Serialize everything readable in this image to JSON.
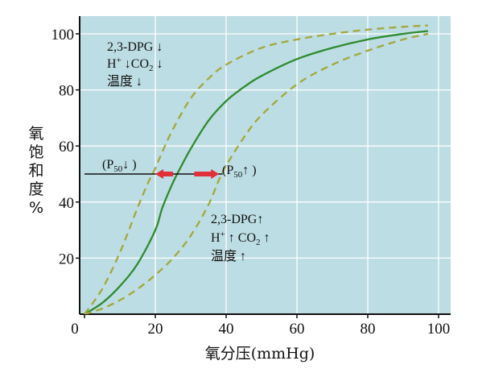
{
  "chart_data": {
    "type": "line",
    "xlabel": "氧分压(mmHg)",
    "ylabel": [
      "氧",
      "饱",
      "和",
      "度",
      "%"
    ],
    "xlim": [
      0,
      100
    ],
    "ylim": [
      0,
      105
    ],
    "x_ticks": [
      "0",
      "20",
      "40",
      "60",
      "80",
      "100"
    ],
    "y_ticks": [
      "20",
      "40",
      "60",
      "80",
      "100"
    ],
    "grid": true,
    "background_color": "#bcdde3",
    "series": [
      {
        "style": "solid",
        "color": "#2e8b2e",
        "x": [
          0,
          5,
          10,
          15,
          20,
          22,
          25,
          27,
          30,
          35,
          40,
          45,
          50,
          60,
          70,
          80,
          90,
          97
        ],
        "y": [
          0,
          4,
          10,
          18,
          30,
          38,
          47,
          52,
          59,
          69,
          76,
          81,
          85,
          91,
          95,
          98,
          100,
          101
        ]
      },
      {
        "style": "dashed",
        "color": "#a3a83a",
        "x": [
          0,
          5,
          10,
          15,
          18,
          20,
          22,
          25,
          30,
          35,
          40,
          50,
          60,
          70,
          80,
          90,
          97
        ],
        "y": [
          0,
          9,
          22,
          38,
          47,
          52,
          58,
          66,
          77,
          84,
          89,
          95,
          98,
          100,
          101.5,
          102.5,
          103
        ]
      },
      {
        "style": "dashed",
        "color": "#a3a83a",
        "x": [
          0,
          5,
          10,
          15,
          20,
          25,
          30,
          35,
          38,
          40,
          45,
          50,
          60,
          70,
          80,
          90,
          97
        ],
        "y": [
          0,
          2,
          5,
          9,
          14,
          20,
          28,
          39,
          48,
          53,
          63,
          71,
          82,
          89,
          94,
          98,
          100
        ]
      }
    ],
    "p50_line": {
      "y": 50,
      "x_start": 0,
      "x_end": 39
    },
    "arrows": [
      {
        "from_x": 25,
        "to_x": 20,
        "y": 50,
        "color": "#e0303a"
      },
      {
        "from_x": 31,
        "to_x": 38,
        "y": 50,
        "color": "#e0303a"
      }
    ],
    "annotations": {
      "left_shift": {
        "line1": "2,3-DPG",
        "line2a": "H",
        "sup": "+",
        "line2b": "CO",
        "sub": "2",
        "line3": "温度"
      },
      "right_shift": {
        "line1": "2,3-DPG",
        "line2a": "H",
        "sup": "+",
        "line2b": "CO",
        "sub": "2",
        "line3": "温度"
      },
      "p50_left": {
        "open": "(P",
        "sub": "50",
        "close": ")"
      },
      "p50_right": {
        "open": "(P",
        "sub": "50",
        "close": ")"
      }
    }
  }
}
